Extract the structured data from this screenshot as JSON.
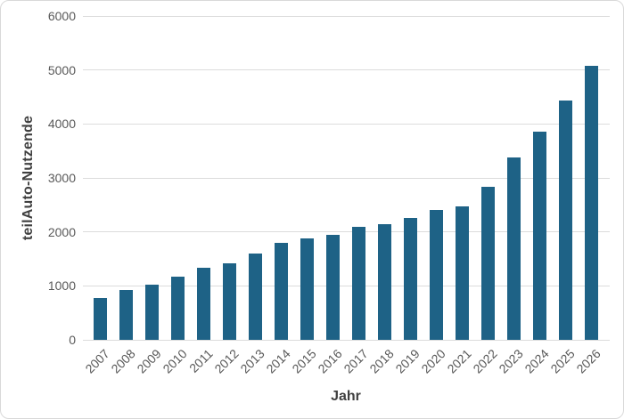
{
  "chart_data": {
    "type": "bar",
    "title": "",
    "xlabel": "Jahr",
    "ylabel": "teilAuto-Nutzende",
    "categories": [
      "2007",
      "2008",
      "2009",
      "2010",
      "2011",
      "2012",
      "2013",
      "2014",
      "2015",
      "2016",
      "2017",
      "2018",
      "2019",
      "2020",
      "2021",
      "2022",
      "2023",
      "2024",
      "2025",
      "2026"
    ],
    "values": [
      770,
      930,
      1020,
      1175,
      1330,
      1410,
      1600,
      1800,
      1880,
      1950,
      2100,
      2140,
      2260,
      2410,
      2470,
      2840,
      3380,
      3860,
      4440,
      5080
    ],
    "ylim": [
      0,
      6000
    ],
    "ytick_step": 1000,
    "ytick_labels": [
      "0",
      "1000",
      "2000",
      "3000",
      "4000",
      "5000",
      "6000"
    ],
    "grid": true,
    "legend": "none",
    "bar_color": "#1e6286",
    "gridline_color": "#dcdcdc",
    "tick_label_color": "#595959",
    "axis_title_color": "#404040",
    "background_color": "#ffffff",
    "border_color": "#d9d9d9"
  }
}
